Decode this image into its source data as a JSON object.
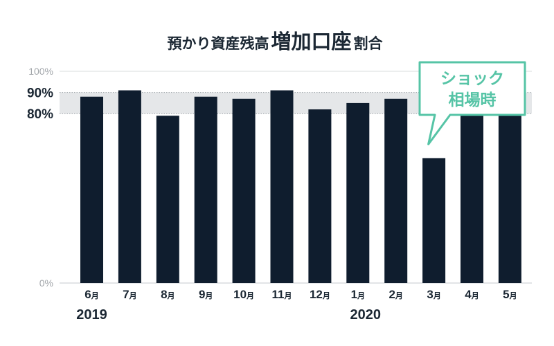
{
  "chart_data": {
    "type": "bar",
    "title": {
      "part1": "預かり資産残高",
      "emphasis": "増加口座",
      "part2": "割合"
    },
    "unit": "月",
    "categories": [
      "6",
      "7",
      "8",
      "9",
      "10",
      "11",
      "12",
      "1",
      "2",
      "3",
      "4",
      "5"
    ],
    "values": [
      88,
      91,
      79,
      88,
      87,
      91,
      82,
      85,
      87,
      59,
      81,
      81
    ],
    "ylim": [
      0,
      100
    ],
    "yticks": [
      "0%",
      "80%",
      "90%",
      "100%"
    ],
    "highlight_band": [
      80,
      90
    ],
    "years": [
      "2019",
      "2020"
    ],
    "annotation": {
      "line1": "ショック",
      "line2": "相場時",
      "target_category": "3"
    },
    "grid": true,
    "legend": "none"
  },
  "colors": {
    "bar": "#0f1d2e",
    "text": "#1b2733",
    "accent": "#56c4a6",
    "band": "#e5e7e9",
    "axis_muted": "#a3a7ab"
  }
}
